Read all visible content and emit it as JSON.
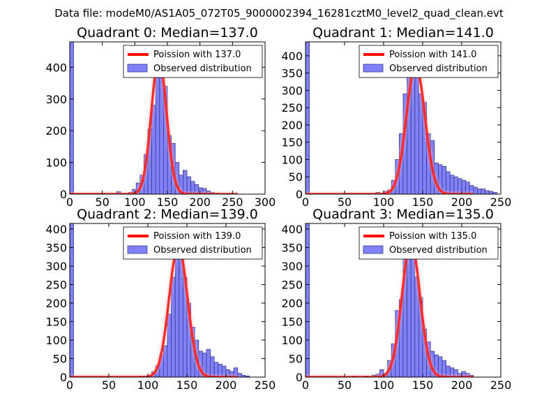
{
  "figure": {
    "suptitle": "Data file: modeM0/AS1A05_072T05_9000002394_16281cztM0_level2_quad_clean.evt"
  },
  "colors": {
    "bar_fill": "#8080f8",
    "bar_edge": "#3a3a8c",
    "curve": "#ff0000",
    "axis": "#000000"
  },
  "chart_data": [
    {
      "type": "bar",
      "title": "Quadrant 0: Median=137.0",
      "median": 137.0,
      "xlim": [
        0,
        300
      ],
      "ylim": [
        0,
        480
      ],
      "xticks": [
        0,
        50,
        100,
        150,
        200,
        250,
        300
      ],
      "yticks": [
        0,
        100,
        200,
        300,
        400
      ],
      "legend": {
        "placement": "top-right",
        "entries": [
          "Poission with 137.0",
          "Observed distribution"
        ]
      },
      "bins": [
        {
          "x0": 0,
          "x1": 6,
          "v": 480
        },
        {
          "x0": 72,
          "x1": 78,
          "v": 8
        },
        {
          "x0": 90,
          "x1": 96,
          "v": 5
        },
        {
          "x0": 96,
          "x1": 102,
          "v": 15
        },
        {
          "x0": 102,
          "x1": 108,
          "v": 35
        },
        {
          "x0": 108,
          "x1": 114,
          "v": 60
        },
        {
          "x0": 114,
          "x1": 120,
          "v": 125
        },
        {
          "x0": 120,
          "x1": 126,
          "v": 205
        },
        {
          "x0": 126,
          "x1": 132,
          "v": 280
        },
        {
          "x0": 132,
          "x1": 138,
          "v": 460
        },
        {
          "x0": 138,
          "x1": 144,
          "v": 440
        },
        {
          "x0": 144,
          "x1": 150,
          "v": 340
        },
        {
          "x0": 150,
          "x1": 156,
          "v": 185
        },
        {
          "x0": 156,
          "x1": 162,
          "v": 160
        },
        {
          "x0": 162,
          "x1": 168,
          "v": 100
        },
        {
          "x0": 168,
          "x1": 174,
          "v": 60
        },
        {
          "x0": 174,
          "x1": 180,
          "v": 75
        },
        {
          "x0": 180,
          "x1": 186,
          "v": 55
        },
        {
          "x0": 186,
          "x1": 192,
          "v": 40
        },
        {
          "x0": 192,
          "x1": 198,
          "v": 30
        },
        {
          "x0": 198,
          "x1": 204,
          "v": 20
        },
        {
          "x0": 204,
          "x1": 210,
          "v": 18
        },
        {
          "x0": 210,
          "x1": 216,
          "v": 10
        },
        {
          "x0": 216,
          "x1": 222,
          "v": 5
        },
        {
          "x0": 222,
          "x1": 228,
          "v": 3
        },
        {
          "x0": 228,
          "x1": 234,
          "v": 2
        },
        {
          "x0": 234,
          "x1": 240,
          "v": 2
        },
        {
          "x0": 240,
          "x1": 246,
          "v": 2
        },
        {
          "x0": 246,
          "x1": 252,
          "v": 2
        }
      ]
    },
    {
      "type": "bar",
      "title": "Quadrant 1: Median=141.0",
      "median": 141.0,
      "xlim": [
        0,
        250
      ],
      "ylim": [
        0,
        440
      ],
      "xticks": [
        0,
        50,
        100,
        150,
        200,
        250
      ],
      "yticks": [
        0,
        50,
        100,
        150,
        200,
        250,
        300,
        350,
        400
      ],
      "legend": {
        "placement": "top-right",
        "entries": [
          "Poission with 141.0",
          "Observed distribution"
        ]
      },
      "bins": [
        {
          "x0": 0,
          "x1": 5,
          "v": 440
        },
        {
          "x0": 90,
          "x1": 95,
          "v": 5
        },
        {
          "x0": 100,
          "x1": 105,
          "v": 8
        },
        {
          "x0": 105,
          "x1": 110,
          "v": 12
        },
        {
          "x0": 110,
          "x1": 115,
          "v": 40
        },
        {
          "x0": 115,
          "x1": 120,
          "v": 100
        },
        {
          "x0": 120,
          "x1": 125,
          "v": 175
        },
        {
          "x0": 125,
          "x1": 130,
          "v": 290
        },
        {
          "x0": 130,
          "x1": 135,
          "v": 340
        },
        {
          "x0": 135,
          "x1": 140,
          "v": 400
        },
        {
          "x0": 140,
          "x1": 145,
          "v": 380
        },
        {
          "x0": 145,
          "x1": 150,
          "v": 290
        },
        {
          "x0": 150,
          "x1": 155,
          "v": 265
        },
        {
          "x0": 155,
          "x1": 160,
          "v": 175
        },
        {
          "x0": 160,
          "x1": 165,
          "v": 155
        },
        {
          "x0": 165,
          "x1": 170,
          "v": 90
        },
        {
          "x0": 170,
          "x1": 175,
          "v": 85
        },
        {
          "x0": 175,
          "x1": 180,
          "v": 80
        },
        {
          "x0": 180,
          "x1": 185,
          "v": 65
        },
        {
          "x0": 185,
          "x1": 190,
          "v": 55
        },
        {
          "x0": 190,
          "x1": 195,
          "v": 50
        },
        {
          "x0": 195,
          "x1": 200,
          "v": 45
        },
        {
          "x0": 200,
          "x1": 205,
          "v": 40
        },
        {
          "x0": 205,
          "x1": 210,
          "v": 35
        },
        {
          "x0": 210,
          "x1": 215,
          "v": 25
        },
        {
          "x0": 215,
          "x1": 220,
          "v": 20
        },
        {
          "x0": 220,
          "x1": 225,
          "v": 15
        },
        {
          "x0": 225,
          "x1": 230,
          "v": 15
        },
        {
          "x0": 230,
          "x1": 235,
          "v": 10
        },
        {
          "x0": 235,
          "x1": 240,
          "v": 8
        },
        {
          "x0": 240,
          "x1": 245,
          "v": 5
        }
      ]
    },
    {
      "type": "bar",
      "title": "Quadrant 2: Median=139.0",
      "median": 139.0,
      "xlim": [
        0,
        250
      ],
      "ylim": [
        0,
        415
      ],
      "xticks": [
        0,
        50,
        100,
        150,
        200,
        250
      ],
      "yticks": [
        0,
        50,
        100,
        150,
        200,
        250,
        300,
        350,
        400
      ],
      "legend": {
        "placement": "top-right",
        "entries": [
          "Poission with 139.0",
          "Observed distribution"
        ]
      },
      "bins": [
        {
          "x0": 0,
          "x1": 5,
          "v": 415
        },
        {
          "x0": 90,
          "x1": 95,
          "v": 3
        },
        {
          "x0": 100,
          "x1": 105,
          "v": 3
        },
        {
          "x0": 105,
          "x1": 110,
          "v": 15
        },
        {
          "x0": 110,
          "x1": 115,
          "v": 30
        },
        {
          "x0": 115,
          "x1": 120,
          "v": 60
        },
        {
          "x0": 120,
          "x1": 125,
          "v": 85
        },
        {
          "x0": 125,
          "x1": 130,
          "v": 170
        },
        {
          "x0": 130,
          "x1": 135,
          "v": 270
        },
        {
          "x0": 135,
          "x1": 140,
          "v": 380
        },
        {
          "x0": 140,
          "x1": 145,
          "v": 370
        },
        {
          "x0": 145,
          "x1": 150,
          "v": 270
        },
        {
          "x0": 150,
          "x1": 155,
          "v": 200
        },
        {
          "x0": 155,
          "x1": 160,
          "v": 135
        },
        {
          "x0": 160,
          "x1": 165,
          "v": 100
        },
        {
          "x0": 165,
          "x1": 170,
          "v": 70
        },
        {
          "x0": 170,
          "x1": 175,
          "v": 65
        },
        {
          "x0": 175,
          "x1": 180,
          "v": 75
        },
        {
          "x0": 180,
          "x1": 185,
          "v": 55
        },
        {
          "x0": 185,
          "x1": 190,
          "v": 40
        },
        {
          "x0": 190,
          "x1": 195,
          "v": 35
        },
        {
          "x0": 195,
          "x1": 200,
          "v": 30
        },
        {
          "x0": 200,
          "x1": 205,
          "v": 20
        },
        {
          "x0": 205,
          "x1": 210,
          "v": 15
        },
        {
          "x0": 210,
          "x1": 215,
          "v": 25
        },
        {
          "x0": 215,
          "x1": 220,
          "v": 10
        },
        {
          "x0": 220,
          "x1": 225,
          "v": 5
        },
        {
          "x0": 225,
          "x1": 230,
          "v": 3
        }
      ]
    },
    {
      "type": "bar",
      "title": "Quadrant 3: Median=135.0",
      "median": 135.0,
      "xlim": [
        0,
        250
      ],
      "ylim": [
        0,
        415
      ],
      "xticks": [
        0,
        50,
        100,
        150,
        200,
        250
      ],
      "yticks": [
        0,
        50,
        100,
        150,
        200,
        250,
        300,
        350,
        400
      ],
      "legend": {
        "placement": "top-right",
        "entries": [
          "Poission with 135.0",
          "Observed distribution"
        ]
      },
      "bins": [
        {
          "x0": 0,
          "x1": 5,
          "v": 415
        },
        {
          "x0": 60,
          "x1": 65,
          "v": 3
        },
        {
          "x0": 75,
          "x1": 80,
          "v": 3
        },
        {
          "x0": 85,
          "x1": 90,
          "v": 5
        },
        {
          "x0": 90,
          "x1": 95,
          "v": 8
        },
        {
          "x0": 95,
          "x1": 100,
          "v": 20
        },
        {
          "x0": 100,
          "x1": 105,
          "v": 10
        },
        {
          "x0": 105,
          "x1": 110,
          "v": 45
        },
        {
          "x0": 110,
          "x1": 115,
          "v": 90
        },
        {
          "x0": 115,
          "x1": 120,
          "v": 180
        },
        {
          "x0": 120,
          "x1": 125,
          "v": 210
        },
        {
          "x0": 125,
          "x1": 130,
          "v": 375
        },
        {
          "x0": 130,
          "x1": 135,
          "v": 350
        },
        {
          "x0": 135,
          "x1": 140,
          "v": 390
        },
        {
          "x0": 140,
          "x1": 145,
          "v": 270
        },
        {
          "x0": 145,
          "x1": 150,
          "v": 215
        },
        {
          "x0": 150,
          "x1": 155,
          "v": 130
        },
        {
          "x0": 155,
          "x1": 160,
          "v": 95
        },
        {
          "x0": 160,
          "x1": 165,
          "v": 70
        },
        {
          "x0": 165,
          "x1": 170,
          "v": 60
        },
        {
          "x0": 170,
          "x1": 175,
          "v": 55
        },
        {
          "x0": 175,
          "x1": 180,
          "v": 45
        },
        {
          "x0": 180,
          "x1": 185,
          "v": 30
        },
        {
          "x0": 185,
          "x1": 190,
          "v": 25
        },
        {
          "x0": 190,
          "x1": 195,
          "v": 20
        },
        {
          "x0": 195,
          "x1": 200,
          "v": 10
        },
        {
          "x0": 200,
          "x1": 205,
          "v": 15
        },
        {
          "x0": 205,
          "x1": 210,
          "v": 10
        },
        {
          "x0": 210,
          "x1": 215,
          "v": 5
        }
      ]
    }
  ]
}
